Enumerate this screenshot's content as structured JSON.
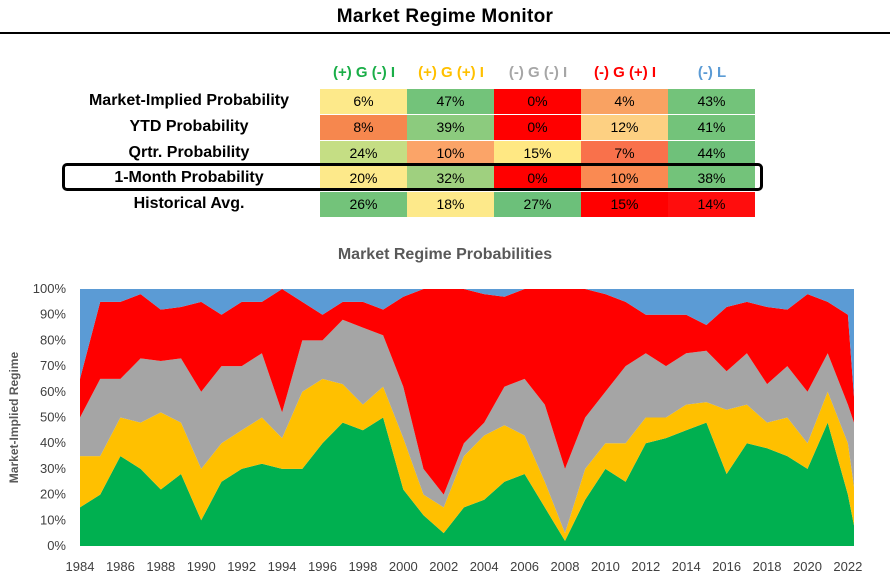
{
  "page_title": "Market Regime Monitor",
  "regimes": [
    {
      "label": "(+) G (-) I",
      "color": "#1aae48"
    },
    {
      "label": "(+) G (+) I",
      "color": "#ffc000"
    },
    {
      "label": "(-) G (-) I",
      "color": "#a6a6a6"
    },
    {
      "label": "(-) G (+) I",
      "color": "#ff0000"
    },
    {
      "label": "(-) L",
      "color": "#5b9bd5"
    }
  ],
  "table": {
    "rows": [
      {
        "label": "Market-Implied Probability",
        "values": [
          "6%",
          "47%",
          "0%",
          "4%",
          "43%"
        ],
        "colors": [
          "#fde98a",
          "#73c37a",
          "#ff0000",
          "#f9a262",
          "#73c37a"
        ]
      },
      {
        "label": "YTD Probability",
        "values": [
          "8%",
          "39%",
          "0%",
          "12%",
          "41%"
        ],
        "colors": [
          "#f6874e",
          "#8ccb7e",
          "#ff0000",
          "#fdd082",
          "#73c37a"
        ]
      },
      {
        "label": "Qrtr. Probability",
        "values": [
          "24%",
          "10%",
          "15%",
          "7%",
          "44%"
        ],
        "colors": [
          "#c5de84",
          "#fba468",
          "#ffe883",
          "#f9714b",
          "#6fc17a"
        ]
      },
      {
        "label": "1-Month Probability",
        "values": [
          "20%",
          "32%",
          "0%",
          "10%",
          "38%"
        ],
        "colors": [
          "#fde98a",
          "#9fd07f",
          "#ff0000",
          "#fa8a52",
          "#73c37a"
        ]
      },
      {
        "label": "Historical Avg.",
        "values": [
          "26%",
          "18%",
          "27%",
          "15%",
          "14%"
        ],
        "colors": [
          "#73c37a",
          "#fde98a",
          "#6cc07a",
          "#ff0000",
          "#ff0d0d"
        ]
      }
    ]
  },
  "chart_data": {
    "type": "area",
    "title": "Market Regime Probabilities",
    "ylabel": "Market-Implied Regime",
    "xlabel": "",
    "stacked": true,
    "ylim": [
      0,
      100
    ],
    "xlim": [
      1984,
      2022.5
    ],
    "y_ticks": [
      "0%",
      "10%",
      "20%",
      "30%",
      "40%",
      "50%",
      "60%",
      "70%",
      "80%",
      "90%",
      "100%"
    ],
    "x_ticks": [
      "1984",
      "1986",
      "1988",
      "1990",
      "1992",
      "1994",
      "1996",
      "1998",
      "2000",
      "2002",
      "2004",
      "2006",
      "2008",
      "2010",
      "2012",
      "2014",
      "2016",
      "2018",
      "2020",
      "2022"
    ],
    "x": [
      1984,
      1985,
      1986,
      1987,
      1988,
      1989,
      1990,
      1991,
      1992,
      1993,
      1994,
      1995,
      1996,
      1997,
      1998,
      1999,
      2000,
      2001,
      2002,
      2003,
      2004,
      2005,
      2006,
      2007,
      2008,
      2009,
      2010,
      2011,
      2012,
      2013,
      2014,
      2015,
      2016,
      2017,
      2018,
      2019,
      2020,
      2021,
      2022,
      2022.3
    ],
    "series": [
      {
        "name": "(+) G (-) I",
        "color": "#00b050",
        "values": [
          15,
          20,
          35,
          30,
          22,
          28,
          10,
          25,
          30,
          32,
          30,
          30,
          40,
          48,
          45,
          50,
          22,
          12,
          5,
          15,
          18,
          25,
          28,
          15,
          2,
          18,
          30,
          25,
          40,
          42,
          45,
          48,
          28,
          40,
          38,
          35,
          30,
          48,
          20,
          8
        ]
      },
      {
        "name": "(+) G (+) I",
        "color": "#ffc000",
        "values": [
          20,
          15,
          15,
          18,
          30,
          20,
          20,
          15,
          15,
          18,
          12,
          30,
          25,
          15,
          10,
          12,
          20,
          8,
          10,
          20,
          25,
          22,
          15,
          10,
          3,
          12,
          10,
          15,
          10,
          8,
          10,
          8,
          25,
          15,
          10,
          15,
          10,
          12,
          20,
          15
        ]
      },
      {
        "name": "(-) G (-) I",
        "color": "#a5a5a5",
        "values": [
          15,
          30,
          15,
          25,
          20,
          25,
          30,
          30,
          25,
          25,
          10,
          20,
          15,
          25,
          30,
          20,
          20,
          10,
          5,
          5,
          5,
          15,
          22,
          30,
          25,
          20,
          20,
          30,
          25,
          20,
          20,
          20,
          15,
          20,
          15,
          20,
          20,
          15,
          15,
          25
        ]
      },
      {
        "name": "(-) G (+) I",
        "color": "#ff0000",
        "values": [
          15,
          30,
          30,
          25,
          20,
          20,
          35,
          20,
          25,
          20,
          48,
          15,
          10,
          7,
          10,
          10,
          35,
          70,
          80,
          60,
          50,
          35,
          35,
          45,
          70,
          50,
          38,
          25,
          15,
          20,
          15,
          10,
          25,
          20,
          30,
          22,
          38,
          20,
          35,
          10
        ]
      },
      {
        "name": "(-) L",
        "color": "#5b9bd5",
        "values": [
          35,
          5,
          5,
          2,
          8,
          7,
          5,
          10,
          5,
          5,
          0,
          5,
          10,
          5,
          5,
          8,
          3,
          0,
          0,
          0,
          2,
          3,
          0,
          0,
          0,
          0,
          2,
          5,
          10,
          10,
          10,
          14,
          7,
          5,
          7,
          8,
          2,
          5,
          10,
          42
        ]
      }
    ]
  }
}
